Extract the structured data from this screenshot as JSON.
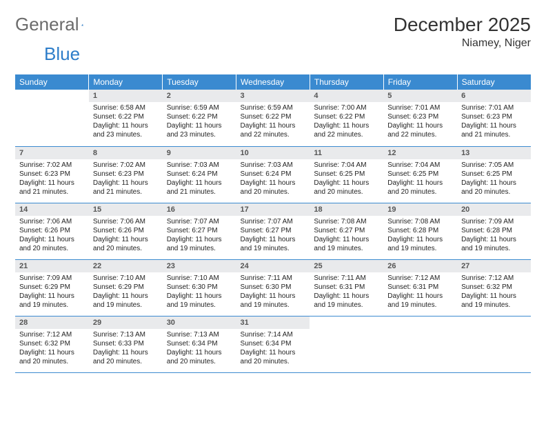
{
  "brand": {
    "part1": "General",
    "part2": "Blue"
  },
  "title": "December 2025",
  "location": "Niamey, Niger",
  "colors": {
    "header_bg": "#3a8ad0",
    "header_text": "#ffffff",
    "daynum_bg": "#e9eaec",
    "border": "#3a8ad0",
    "logo_gray": "#6b6b6b",
    "logo_blue": "#2d7dc9"
  },
  "weekdays": [
    "Sunday",
    "Monday",
    "Tuesday",
    "Wednesday",
    "Thursday",
    "Friday",
    "Saturday"
  ],
  "weeks": [
    [
      {
        "n": "",
        "sunrise": "",
        "sunset": "",
        "daylight": ""
      },
      {
        "n": "1",
        "sunrise": "Sunrise: 6:58 AM",
        "sunset": "Sunset: 6:22 PM",
        "daylight": "Daylight: 11 hours and 23 minutes."
      },
      {
        "n": "2",
        "sunrise": "Sunrise: 6:59 AM",
        "sunset": "Sunset: 6:22 PM",
        "daylight": "Daylight: 11 hours and 23 minutes."
      },
      {
        "n": "3",
        "sunrise": "Sunrise: 6:59 AM",
        "sunset": "Sunset: 6:22 PM",
        "daylight": "Daylight: 11 hours and 22 minutes."
      },
      {
        "n": "4",
        "sunrise": "Sunrise: 7:00 AM",
        "sunset": "Sunset: 6:22 PM",
        "daylight": "Daylight: 11 hours and 22 minutes."
      },
      {
        "n": "5",
        "sunrise": "Sunrise: 7:01 AM",
        "sunset": "Sunset: 6:23 PM",
        "daylight": "Daylight: 11 hours and 22 minutes."
      },
      {
        "n": "6",
        "sunrise": "Sunrise: 7:01 AM",
        "sunset": "Sunset: 6:23 PM",
        "daylight": "Daylight: 11 hours and 21 minutes."
      }
    ],
    [
      {
        "n": "7",
        "sunrise": "Sunrise: 7:02 AM",
        "sunset": "Sunset: 6:23 PM",
        "daylight": "Daylight: 11 hours and 21 minutes."
      },
      {
        "n": "8",
        "sunrise": "Sunrise: 7:02 AM",
        "sunset": "Sunset: 6:23 PM",
        "daylight": "Daylight: 11 hours and 21 minutes."
      },
      {
        "n": "9",
        "sunrise": "Sunrise: 7:03 AM",
        "sunset": "Sunset: 6:24 PM",
        "daylight": "Daylight: 11 hours and 21 minutes."
      },
      {
        "n": "10",
        "sunrise": "Sunrise: 7:03 AM",
        "sunset": "Sunset: 6:24 PM",
        "daylight": "Daylight: 11 hours and 20 minutes."
      },
      {
        "n": "11",
        "sunrise": "Sunrise: 7:04 AM",
        "sunset": "Sunset: 6:25 PM",
        "daylight": "Daylight: 11 hours and 20 minutes."
      },
      {
        "n": "12",
        "sunrise": "Sunrise: 7:04 AM",
        "sunset": "Sunset: 6:25 PM",
        "daylight": "Daylight: 11 hours and 20 minutes."
      },
      {
        "n": "13",
        "sunrise": "Sunrise: 7:05 AM",
        "sunset": "Sunset: 6:25 PM",
        "daylight": "Daylight: 11 hours and 20 minutes."
      }
    ],
    [
      {
        "n": "14",
        "sunrise": "Sunrise: 7:06 AM",
        "sunset": "Sunset: 6:26 PM",
        "daylight": "Daylight: 11 hours and 20 minutes."
      },
      {
        "n": "15",
        "sunrise": "Sunrise: 7:06 AM",
        "sunset": "Sunset: 6:26 PM",
        "daylight": "Daylight: 11 hours and 20 minutes."
      },
      {
        "n": "16",
        "sunrise": "Sunrise: 7:07 AM",
        "sunset": "Sunset: 6:27 PM",
        "daylight": "Daylight: 11 hours and 19 minutes."
      },
      {
        "n": "17",
        "sunrise": "Sunrise: 7:07 AM",
        "sunset": "Sunset: 6:27 PM",
        "daylight": "Daylight: 11 hours and 19 minutes."
      },
      {
        "n": "18",
        "sunrise": "Sunrise: 7:08 AM",
        "sunset": "Sunset: 6:27 PM",
        "daylight": "Daylight: 11 hours and 19 minutes."
      },
      {
        "n": "19",
        "sunrise": "Sunrise: 7:08 AM",
        "sunset": "Sunset: 6:28 PM",
        "daylight": "Daylight: 11 hours and 19 minutes."
      },
      {
        "n": "20",
        "sunrise": "Sunrise: 7:09 AM",
        "sunset": "Sunset: 6:28 PM",
        "daylight": "Daylight: 11 hours and 19 minutes."
      }
    ],
    [
      {
        "n": "21",
        "sunrise": "Sunrise: 7:09 AM",
        "sunset": "Sunset: 6:29 PM",
        "daylight": "Daylight: 11 hours and 19 minutes."
      },
      {
        "n": "22",
        "sunrise": "Sunrise: 7:10 AM",
        "sunset": "Sunset: 6:29 PM",
        "daylight": "Daylight: 11 hours and 19 minutes."
      },
      {
        "n": "23",
        "sunrise": "Sunrise: 7:10 AM",
        "sunset": "Sunset: 6:30 PM",
        "daylight": "Daylight: 11 hours and 19 minutes."
      },
      {
        "n": "24",
        "sunrise": "Sunrise: 7:11 AM",
        "sunset": "Sunset: 6:30 PM",
        "daylight": "Daylight: 11 hours and 19 minutes."
      },
      {
        "n": "25",
        "sunrise": "Sunrise: 7:11 AM",
        "sunset": "Sunset: 6:31 PM",
        "daylight": "Daylight: 11 hours and 19 minutes."
      },
      {
        "n": "26",
        "sunrise": "Sunrise: 7:12 AM",
        "sunset": "Sunset: 6:31 PM",
        "daylight": "Daylight: 11 hours and 19 minutes."
      },
      {
        "n": "27",
        "sunrise": "Sunrise: 7:12 AM",
        "sunset": "Sunset: 6:32 PM",
        "daylight": "Daylight: 11 hours and 19 minutes."
      }
    ],
    [
      {
        "n": "28",
        "sunrise": "Sunrise: 7:12 AM",
        "sunset": "Sunset: 6:32 PM",
        "daylight": "Daylight: 11 hours and 20 minutes."
      },
      {
        "n": "29",
        "sunrise": "Sunrise: 7:13 AM",
        "sunset": "Sunset: 6:33 PM",
        "daylight": "Daylight: 11 hours and 20 minutes."
      },
      {
        "n": "30",
        "sunrise": "Sunrise: 7:13 AM",
        "sunset": "Sunset: 6:34 PM",
        "daylight": "Daylight: 11 hours and 20 minutes."
      },
      {
        "n": "31",
        "sunrise": "Sunrise: 7:14 AM",
        "sunset": "Sunset: 6:34 PM",
        "daylight": "Daylight: 11 hours and 20 minutes."
      },
      {
        "n": "",
        "sunrise": "",
        "sunset": "",
        "daylight": ""
      },
      {
        "n": "",
        "sunrise": "",
        "sunset": "",
        "daylight": ""
      },
      {
        "n": "",
        "sunrise": "",
        "sunset": "",
        "daylight": ""
      }
    ]
  ]
}
